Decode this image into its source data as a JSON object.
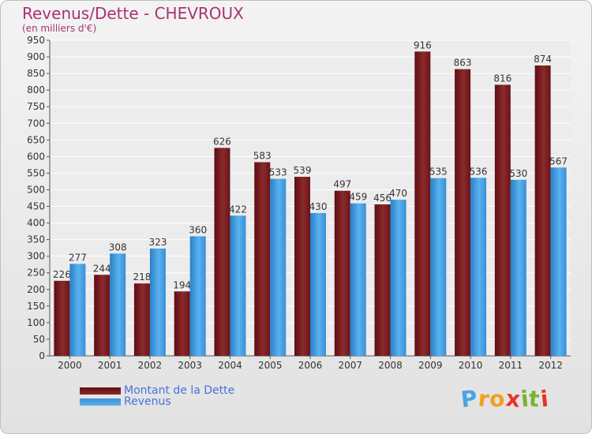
{
  "chart_data": {
    "type": "bar",
    "title": "Revenus/Dette - CHEVROUX",
    "subtitle": "(en milliers d'€)",
    "categories": [
      "2000",
      "2001",
      "2002",
      "2003",
      "2004",
      "2005",
      "2006",
      "2007",
      "2008",
      "2009",
      "2010",
      "2011",
      "2012"
    ],
    "series": [
      {
        "name": "Montant de la Dette",
        "color": "#8b2a2d",
        "values": [
          226,
          244,
          218,
          194,
          626,
          583,
          539,
          497,
          456,
          916,
          863,
          816,
          874
        ]
      },
      {
        "name": "Revenus",
        "color": "#4aa3e6",
        "values": [
          277,
          308,
          323,
          360,
          422,
          533,
          430,
          459,
          470,
          535,
          536,
          530,
          567
        ]
      }
    ],
    "ylim": [
      0,
      950
    ],
    "yticks": [
      0,
      50,
      100,
      150,
      200,
      250,
      300,
      350,
      400,
      450,
      500,
      550,
      600,
      650,
      700,
      750,
      800,
      850,
      900,
      950
    ],
    "grid": true,
    "legend_position": "bottom-left"
  },
  "brand": {
    "logo_letters": [
      "P",
      "r",
      "o",
      "x",
      "i",
      "t",
      "i"
    ],
    "logo_colors": [
      "#4aa3e6",
      "#f0a020",
      "#f0a020",
      "#e8332b",
      "#7ab32e",
      "#7ab32e",
      "#e8332b"
    ]
  }
}
